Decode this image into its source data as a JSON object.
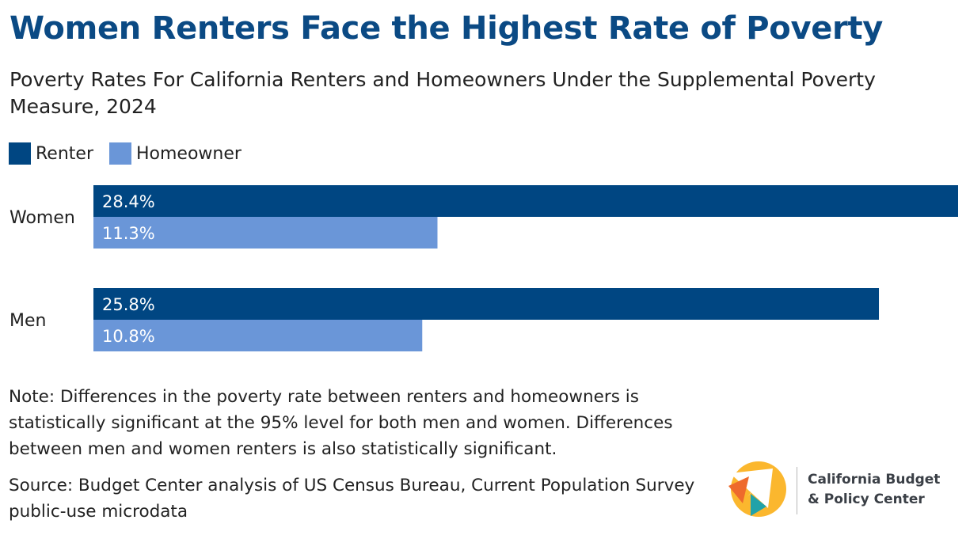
{
  "title": "Women Renters Face the Highest Rate of Poverty",
  "subtitle": "Poverty Rates For California Renters and Homeowners Under the Supplemental Poverty Measure, 2024",
  "legend": [
    {
      "label": "Renter",
      "color": "#004682"
    },
    {
      "label": "Homeowner",
      "color": "#6a96d8"
    }
  ],
  "chart_data": {
    "type": "bar",
    "orientation": "horizontal",
    "categories": [
      "Women",
      "Men"
    ],
    "series": [
      {
        "name": "Renter",
        "color": "#004682",
        "values": [
          28.4,
          25.8
        ],
        "labels": [
          "28.4%",
          "25.8%"
        ]
      },
      {
        "name": "Homeowner",
        "color": "#6a96d8",
        "values": [
          11.3,
          10.8
        ],
        "labels": [
          "11.3%",
          "10.8%"
        ]
      }
    ],
    "title": "Poverty Rates For California Renters and Homeowners Under the Supplemental Poverty Measure, 2024",
    "xlabel": "",
    "ylabel": "",
    "xlim": [
      0,
      28.4
    ],
    "grid": false,
    "legend_position": "top-left"
  },
  "note": "Note: Differences in the poverty rate between renters and homeowners is statistically significant at the 95% level for both men and women. Differences between men and women renters is also statistically significant.",
  "source": "Source: Budget Center analysis of US Census Bureau, Current Population Survey public-use microdata",
  "logo": {
    "line1": "California Budget",
    "line2": "& Policy Center",
    "colors": {
      "yellow": "#fbb72e",
      "orange": "#ee6a2c",
      "teal": "#22a2a8",
      "white": "#ffffff"
    }
  }
}
